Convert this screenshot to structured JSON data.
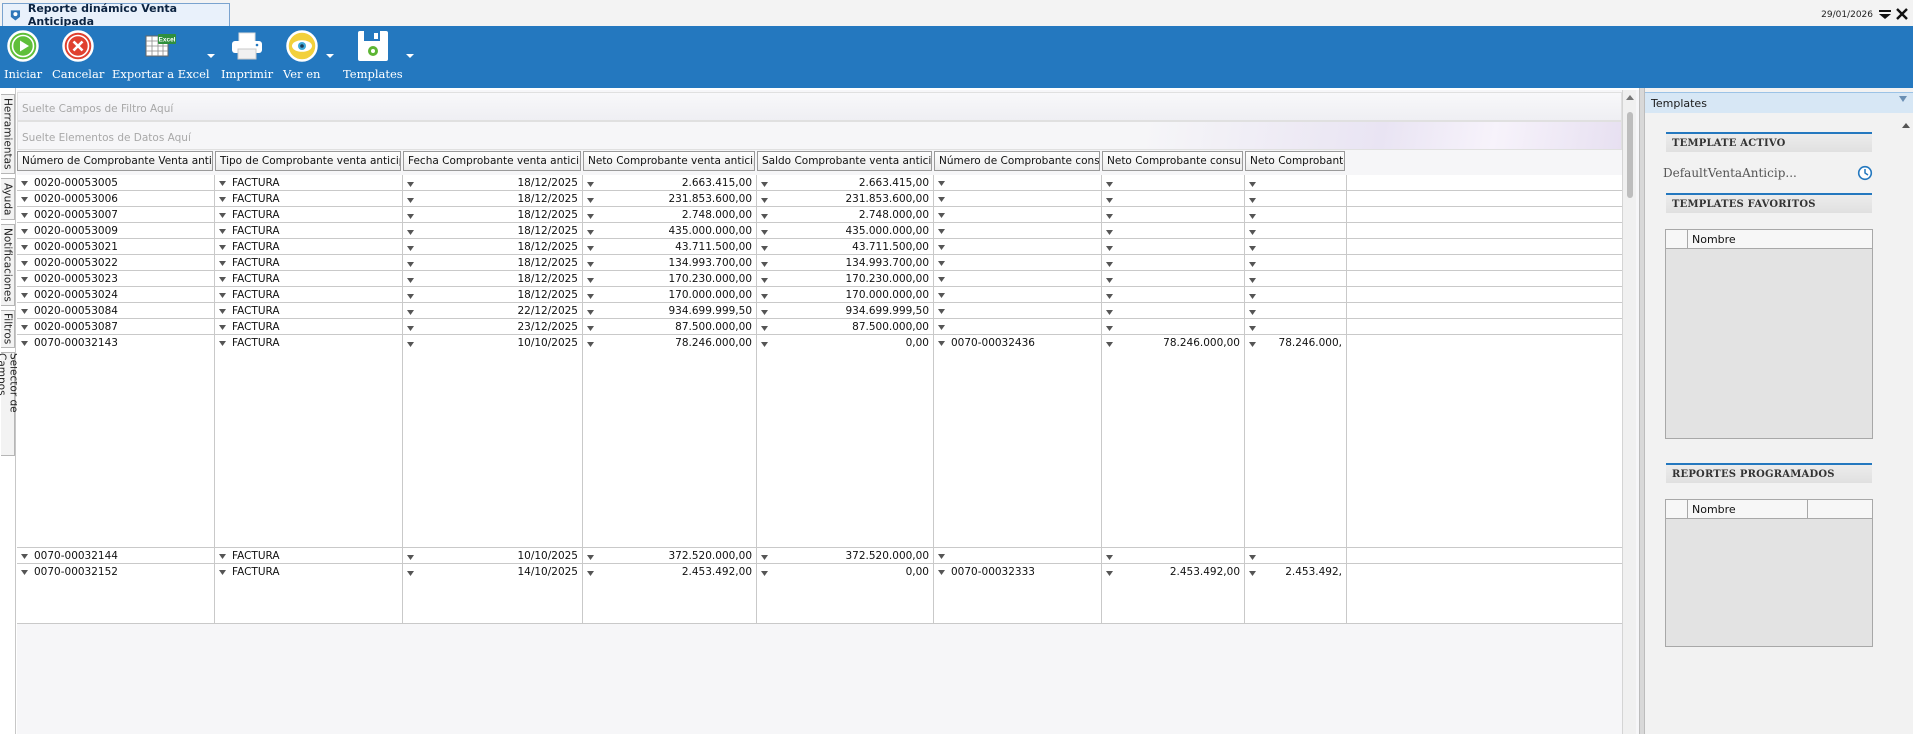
{
  "window": {
    "tab_title": "Reporte dinámico Venta Anticipada",
    "date": "29/01/2026"
  },
  "toolbar": {
    "iniciar": "Iniciar",
    "cancelar": "Cancelar",
    "exportar": "Exportar a Excel",
    "excel_badge": "Excel",
    "imprimir": "Imprimir",
    "ver_en": "Ver en",
    "templates": "Templates"
  },
  "side_tabs": [
    "Herramientas",
    "Ayuda",
    "Notificaciones",
    "Filtros",
    "Selector de Campos"
  ],
  "pivot": {
    "filter_drop": "Suelte Campos de Filtro Aquí",
    "data_drop": "Suelte Elementos de Datos Aquí",
    "columns": [
      "Número de Comprobante Venta anticipada",
      "Tipo de Comprobante venta anticipada.",
      "Fecha Comprobante venta anticipada",
      "Neto Comprobante venta anticipada",
      "Saldo Comprobante venta anticipada",
      "Número de Comprobante consumo",
      "Neto Comprobante consumo",
      "Neto Comprobante r"
    ],
    "rows": [
      {
        "num": "0020-00053005",
        "tipo": "FACTURA",
        "fecha": "18/12/2025",
        "neto": "2.663.415,00",
        "saldo": "2.663.415,00",
        "consumo": "",
        "neto_consumo": "",
        "neto_r": ""
      },
      {
        "num": "0020-00053006",
        "tipo": "FACTURA",
        "fecha": "18/12/2025",
        "neto": "231.853.600,00",
        "saldo": "231.853.600,00",
        "consumo": "",
        "neto_consumo": "",
        "neto_r": ""
      },
      {
        "num": "0020-00053007",
        "tipo": "FACTURA",
        "fecha": "18/12/2025",
        "neto": "2.748.000,00",
        "saldo": "2.748.000,00",
        "consumo": "",
        "neto_consumo": "",
        "neto_r": ""
      },
      {
        "num": "0020-00053009",
        "tipo": "FACTURA",
        "fecha": "18/12/2025",
        "neto": "435.000.000,00",
        "saldo": "435.000.000,00",
        "consumo": "",
        "neto_consumo": "",
        "neto_r": ""
      },
      {
        "num": "0020-00053021",
        "tipo": "FACTURA",
        "fecha": "18/12/2025",
        "neto": "43.711.500,00",
        "saldo": "43.711.500,00",
        "consumo": "",
        "neto_consumo": "",
        "neto_r": ""
      },
      {
        "num": "0020-00053022",
        "tipo": "FACTURA",
        "fecha": "18/12/2025",
        "neto": "134.993.700,00",
        "saldo": "134.993.700,00",
        "consumo": "",
        "neto_consumo": "",
        "neto_r": ""
      },
      {
        "num": "0020-00053023",
        "tipo": "FACTURA",
        "fecha": "18/12/2025",
        "neto": "170.230.000,00",
        "saldo": "170.230.000,00",
        "consumo": "",
        "neto_consumo": "",
        "neto_r": ""
      },
      {
        "num": "0020-00053024",
        "tipo": "FACTURA",
        "fecha": "18/12/2025",
        "neto": "170.000.000,00",
        "saldo": "170.000.000,00",
        "consumo": "",
        "neto_consumo": "",
        "neto_r": ""
      },
      {
        "num": "0020-00053084",
        "tipo": "FACTURA",
        "fecha": "22/12/2025",
        "neto": "934.699.999,50",
        "saldo": "934.699.999,50",
        "consumo": "",
        "neto_consumo": "",
        "neto_r": ""
      },
      {
        "num": "0020-00053087",
        "tipo": "FACTURA",
        "fecha": "23/12/2025",
        "neto": "87.500.000,00",
        "saldo": "87.500.000,00",
        "consumo": "",
        "neto_consumo": "",
        "neto_r": ""
      },
      {
        "num": "0070-00032143",
        "tipo": "FACTURA",
        "fecha": "10/10/2025",
        "neto": "78.246.000,00",
        "saldo": "0,00",
        "consumo": "0070-00032436",
        "neto_consumo": "78.246.000,00",
        "neto_r": "78.246.000,",
        "tall": true
      },
      {
        "num": "0070-00032144",
        "tipo": "FACTURA",
        "fecha": "10/10/2025",
        "neto": "372.520.000,00",
        "saldo": "372.520.000,00",
        "consumo": "",
        "neto_consumo": "",
        "neto_r": ""
      },
      {
        "num": "0070-00032152",
        "tipo": "FACTURA",
        "fecha": "14/10/2025",
        "neto": "2.453.492,00",
        "saldo": "0,00",
        "consumo": "0070-00032333",
        "neto_consumo": "2.453.492,00",
        "neto_r": "2.453.492,",
        "last": true
      }
    ]
  },
  "templates_panel": {
    "title": "Templates",
    "active_header": "TEMPLATE ACTIVO",
    "active_value": "DefaultVentaAnticip...",
    "favorites_header": "TEMPLATES FAVORITOS",
    "favorites_col": "Nombre",
    "scheduled_header": "REPORTES PROGRAMADOS",
    "scheduled_col": "Nombre"
  },
  "colors": {
    "ribbon": "#2478bf",
    "accent": "#2478bf"
  },
  "icons": [
    "play-icon",
    "cancel-icon",
    "excel-icon",
    "printer-icon",
    "eye-icon",
    "save-template-icon",
    "close-icon",
    "clock-icon"
  ]
}
